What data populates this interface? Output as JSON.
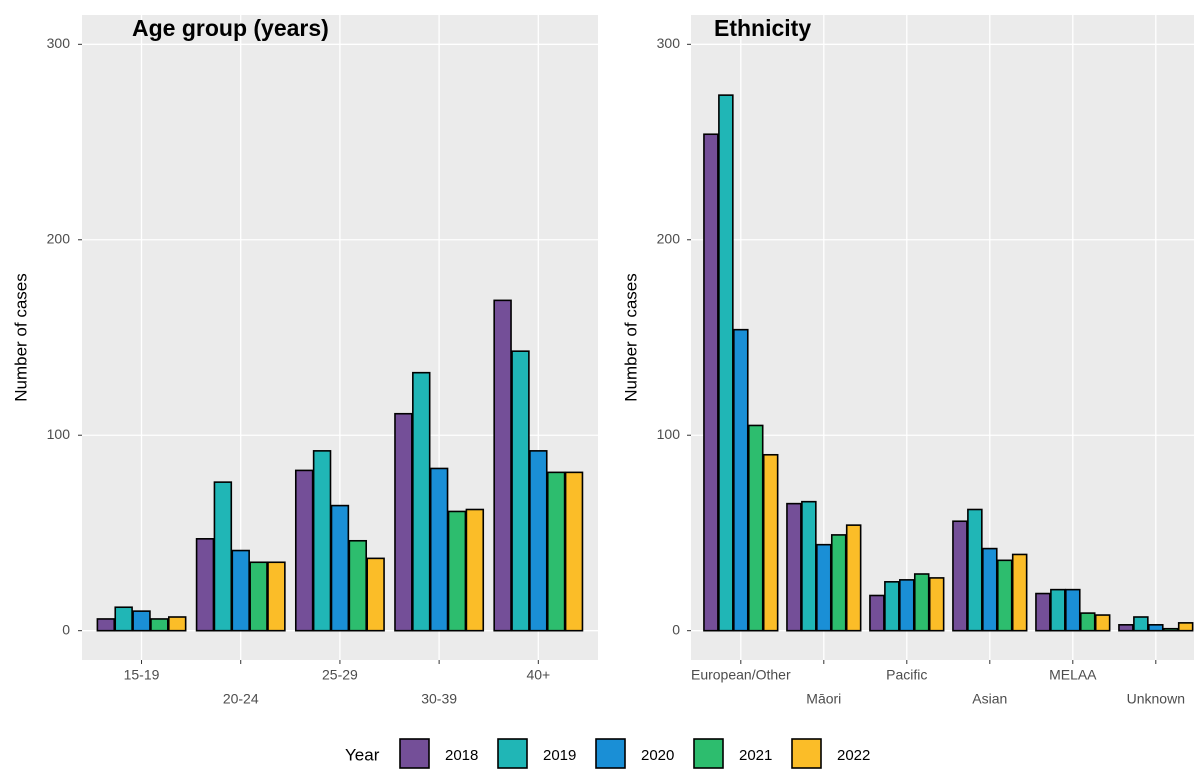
{
  "legend_title": "Year",
  "chart_data": [
    {
      "type": "bar",
      "title": "Age group (years)",
      "y_label": "Number of cases",
      "categories": [
        "15-19",
        "20-24",
        "25-29",
        "30-39",
        "40+"
      ],
      "series": [
        {
          "name": "2018",
          "color": "#744f98",
          "values": [
            6,
            47,
            82,
            111,
            169
          ]
        },
        {
          "name": "2019",
          "color": "#20b6b6",
          "values": [
            12,
            76,
            92,
            132,
            143
          ]
        },
        {
          "name": "2020",
          "color": "#1a8fd6",
          "values": [
            10,
            41,
            64,
            83,
            92
          ]
        },
        {
          "name": "2021",
          "color": "#2dbd6e",
          "values": [
            6,
            35,
            46,
            61,
            81
          ]
        },
        {
          "name": "2022",
          "color": "#fbbd28",
          "values": [
            7,
            35,
            37,
            62,
            81
          ]
        }
      ],
      "ylim": [
        -15,
        315
      ],
      "yticks": [
        0,
        100,
        200,
        300
      ],
      "grid": true
    },
    {
      "type": "bar",
      "title": "Ethnicity",
      "y_label": "Number of cases",
      "categories": [
        "European/Other",
        "Māori",
        "Pacific",
        "Asian",
        "MELAA",
        "Unknown"
      ],
      "series": [
        {
          "name": "2018",
          "color": "#744f98",
          "values": [
            254,
            65,
            18,
            56,
            19,
            3
          ]
        },
        {
          "name": "2019",
          "color": "#20b6b6",
          "values": [
            274,
            66,
            25,
            62,
            21,
            7
          ]
        },
        {
          "name": "2020",
          "color": "#1a8fd6",
          "values": [
            154,
            44,
            26,
            42,
            21,
            3
          ]
        },
        {
          "name": "2021",
          "color": "#2dbd6e",
          "values": [
            105,
            49,
            29,
            36,
            9,
            1
          ]
        },
        {
          "name": "2022",
          "color": "#fbbd28",
          "values": [
            90,
            54,
            27,
            39,
            8,
            4
          ]
        }
      ],
      "ylim": [
        -15,
        315
      ],
      "yticks": [
        0,
        100,
        200,
        300
      ],
      "grid": true
    }
  ]
}
